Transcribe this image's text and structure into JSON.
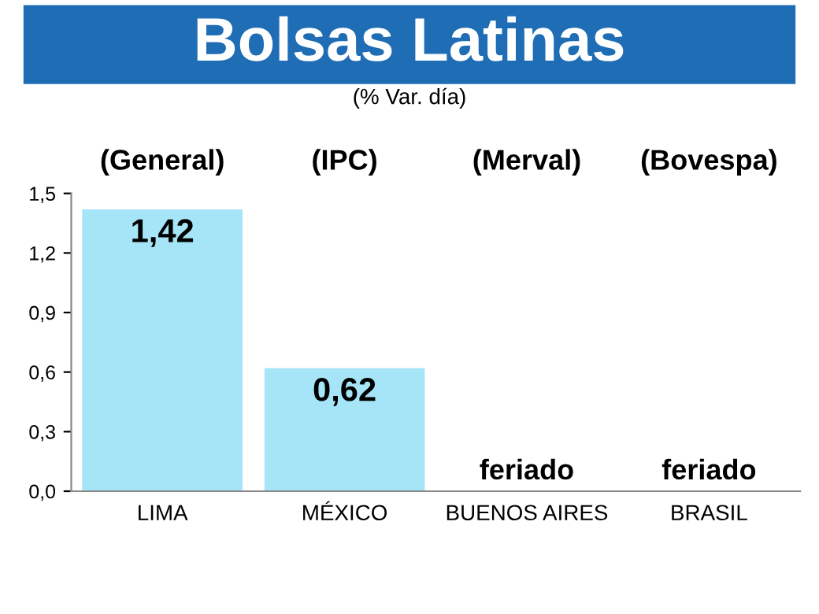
{
  "chart_data": {
    "type": "bar",
    "title": "Bolsas Latinas",
    "subtitle": "(% Var. día)",
    "categories": [
      "LIMA",
      "MÉXICO",
      "BUENOS AIRES",
      "BRASIL"
    ],
    "values": [
      1.42,
      0.62,
      null,
      null
    ],
    "value_labels": [
      "1,42",
      "0,62",
      "feriado",
      "feriado"
    ],
    "color": "#a6e4f7",
    "ylim": [
      0,
      1.5
    ],
    "yticks": [
      {
        "value": 0,
        "label": "0,0"
      },
      {
        "value": 0.3,
        "label": "0,3"
      },
      {
        "value": 0.6,
        "label": "0,6"
      },
      {
        "value": 0.9,
        "label": "0,9"
      },
      {
        "value": 1.2,
        "label": "1,2"
      },
      {
        "value": 1.5,
        "label": "1,5"
      }
    ],
    "annotations": [
      "(General)",
      "(IPC)",
      "(Merval)",
      "(Bovespa)"
    ],
    "grid": false
  }
}
